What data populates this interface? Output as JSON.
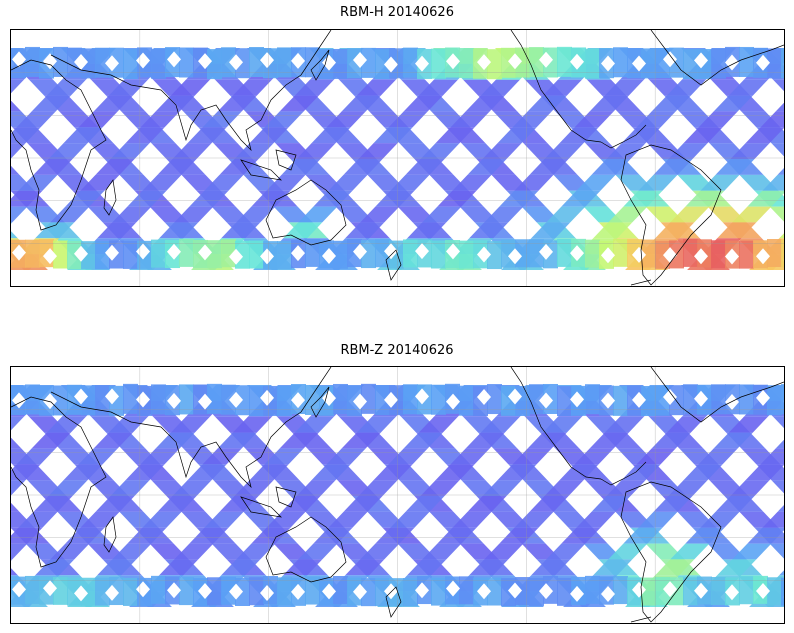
{
  "maps": [
    {
      "title": "RBM-H 20140626",
      "lat_range": [
        -60,
        60
      ],
      "lon_range": [
        20,
        380
      ],
      "grid_lon_step": 60,
      "grid_lat_step": 20,
      "swath_color_low": "#6666ee",
      "high_value_regions": [
        {
          "name": "south-atlantic",
          "level": 1.0
        },
        {
          "name": "south-indian",
          "level": 0.7
        },
        {
          "name": "north-pacific",
          "level": 0.5
        },
        {
          "name": "southern-ocean",
          "level": 0.4
        }
      ]
    },
    {
      "title": "RBM-Z 20140626",
      "lat_range": [
        -60,
        60
      ],
      "lon_range": [
        20,
        380
      ],
      "grid_lon_step": 60,
      "grid_lat_step": 20,
      "swath_color_low": "#6666ee",
      "high_value_regions": [
        {
          "name": "south-america",
          "level": 0.5
        },
        {
          "name": "southern-ocean",
          "level": 0.35
        }
      ]
    }
  ],
  "colormap": [
    "#6a5ff0",
    "#5aa0f5",
    "#66e6d8",
    "#c8f870",
    "#f8c860",
    "#e86060"
  ]
}
